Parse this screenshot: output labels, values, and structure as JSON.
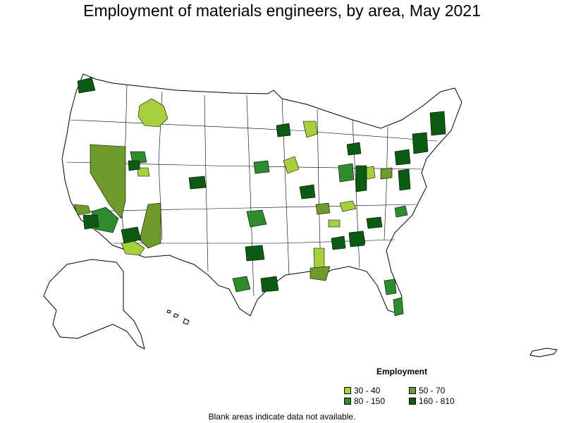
{
  "title": "Employment of materials engineers, by area, May 2021",
  "legend": {
    "title": "Employment",
    "items": [
      {
        "label": "30 - 40",
        "color": "#a6d13c"
      },
      {
        "label": "50 - 70",
        "color": "#6f9a2c"
      },
      {
        "label": "80 - 150",
        "color": "#2e8b2e"
      },
      {
        "label": "160 - 810",
        "color": "#0a5c12"
      }
    ]
  },
  "note": "Blank areas indicate data not available.",
  "colors": {
    "outline": "#000000",
    "blank": "#ffffff"
  }
}
